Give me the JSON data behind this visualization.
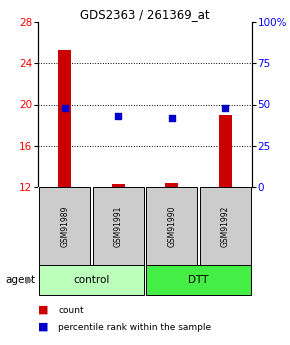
{
  "title": "GDS2363 / 261369_at",
  "samples": [
    "GSM91989",
    "GSM91991",
    "GSM91990",
    "GSM91992"
  ],
  "counts": [
    25.3,
    12.3,
    12.4,
    19.0
  ],
  "percentiles": [
    48.0,
    43.0,
    42.0,
    48.0
  ],
  "ylim_left": [
    12,
    28
  ],
  "ylim_right": [
    0,
    100
  ],
  "yticks_left": [
    12,
    16,
    20,
    24,
    28
  ],
  "yticks_right": [
    0,
    25,
    50,
    75,
    100
  ],
  "ytick_labels_right": [
    "0",
    "25",
    "50",
    "75",
    "100%"
  ],
  "bar_color": "#cc0000",
  "dot_color": "#0000cc",
  "bar_width": 0.25,
  "groups": [
    {
      "label": "control",
      "indices": [
        0,
        1
      ],
      "color": "#bbffbb"
    },
    {
      "label": "DTT",
      "indices": [
        2,
        3
      ],
      "color": "#44ee44"
    }
  ],
  "agent_label": "agent",
  "legend_count_label": "count",
  "legend_percentile_label": "percentile rank within the sample",
  "background_color": "#ffffff",
  "sample_box_color": "#cccccc",
  "grid_ticks": [
    16,
    20,
    24
  ]
}
